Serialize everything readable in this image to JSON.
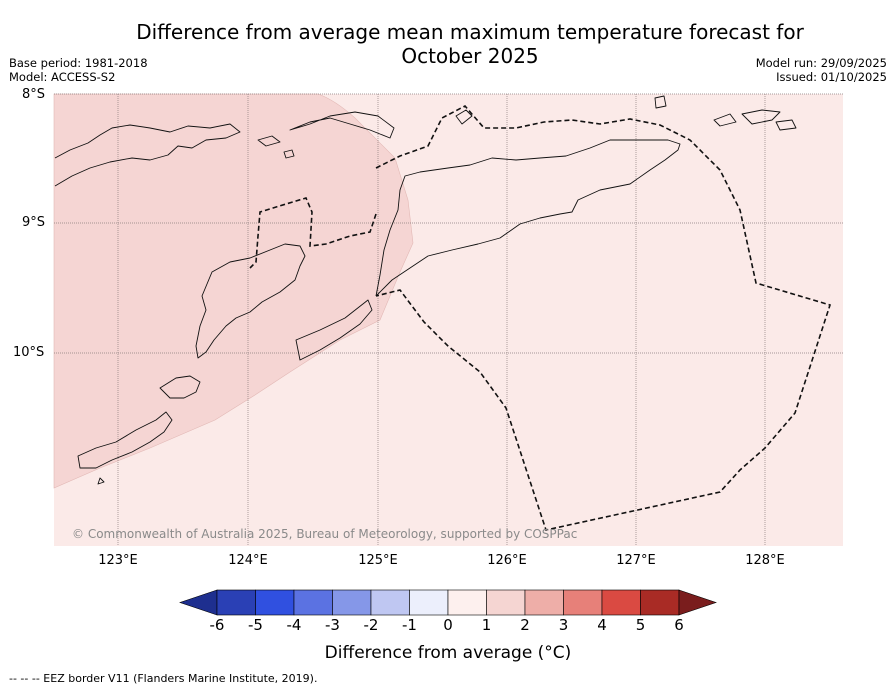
{
  "title": {
    "line1": "Difference from average mean maximum temperature forecast for",
    "line2": "October 2025"
  },
  "meta": {
    "base_period": "Base period: 1981-2018",
    "model": "Model: ACCESS-S2",
    "model_run": "Model run: 29/09/2025",
    "issued": "Issued: 01/10/2025"
  },
  "map": {
    "lat_labels": [
      "8°S",
      "9°S",
      "10°S"
    ],
    "lon_labels": [
      "123°E",
      "124°E",
      "125°E",
      "126°E",
      "127°E",
      "128°E"
    ],
    "copyright": "© Commonwealth of Australia 2025, Bureau of Meteorology, supported by COSPPac",
    "category_colors": {
      "plus_0_to_1": "#fbeae8",
      "plus_1_to_2": "#f5d5d3"
    }
  },
  "colorbar": {
    "ticks": [
      "-6",
      "-5",
      "-4",
      "-3",
      "-2",
      "-1",
      "0",
      "1",
      "2",
      "3",
      "4",
      "5",
      "6"
    ],
    "colors": [
      "#1e2f8f",
      "#2a40b5",
      "#3050e0",
      "#5b72e2",
      "#8597e8",
      "#bfc7f2",
      "#eceffc",
      "#fdf0ee",
      "#f5d5d2",
      "#eeaea8",
      "#e78079",
      "#da4a42",
      "#a92b25",
      "#7a1d1d"
    ],
    "label": "Difference from average (°C)"
  },
  "footnote": "--  --  -- EEZ border V11 (Flanders Marine Institute, 2019)."
}
